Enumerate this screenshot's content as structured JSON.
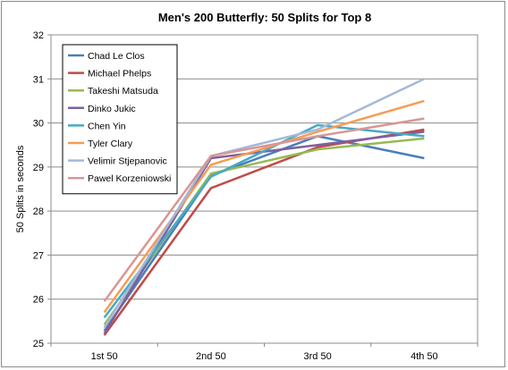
{
  "chart_data": {
    "type": "line",
    "title": "Men's 200 Butterfly: 50 Splits for Top 8",
    "xlabel": "",
    "ylabel": "50 Splits in seconds",
    "categories": [
      "1st 50",
      "2nd 50",
      "3rd 50",
      "4th 50"
    ],
    "ylim": [
      25,
      32
    ],
    "yticks": [
      25,
      26,
      27,
      28,
      29,
      30,
      31,
      32
    ],
    "grid": "horizontal",
    "legend_position": "top-left",
    "series": [
      {
        "name": "Chad Le Clos",
        "color": "#4a7ebb",
        "values": [
          25.28,
          28.8,
          29.7,
          29.2
        ]
      },
      {
        "name": "Michael Phelps",
        "color": "#be4b48",
        "values": [
          25.18,
          28.52,
          29.45,
          29.85
        ]
      },
      {
        "name": "Takeshi Matsuda",
        "color": "#98b954",
        "values": [
          25.42,
          28.85,
          29.4,
          29.65
        ]
      },
      {
        "name": "Dinko Jukic",
        "color": "#7d60a0",
        "values": [
          25.22,
          29.2,
          29.5,
          29.8
        ]
      },
      {
        "name": "Chen Yin",
        "color": "#46aac5",
        "values": [
          25.58,
          28.78,
          29.95,
          29.7
        ]
      },
      {
        "name": "Tyler Clary",
        "color": "#f59d56",
        "values": [
          25.7,
          29.05,
          29.8,
          30.5
        ]
      },
      {
        "name": "Velimir Stjepanovic",
        "color": "#a5b8d8",
        "values": [
          25.35,
          29.25,
          29.85,
          31.0
        ]
      },
      {
        "name": "Pawel Korzeniowski",
        "color": "#d99694",
        "values": [
          25.95,
          29.25,
          29.7,
          30.1
        ]
      }
    ]
  }
}
